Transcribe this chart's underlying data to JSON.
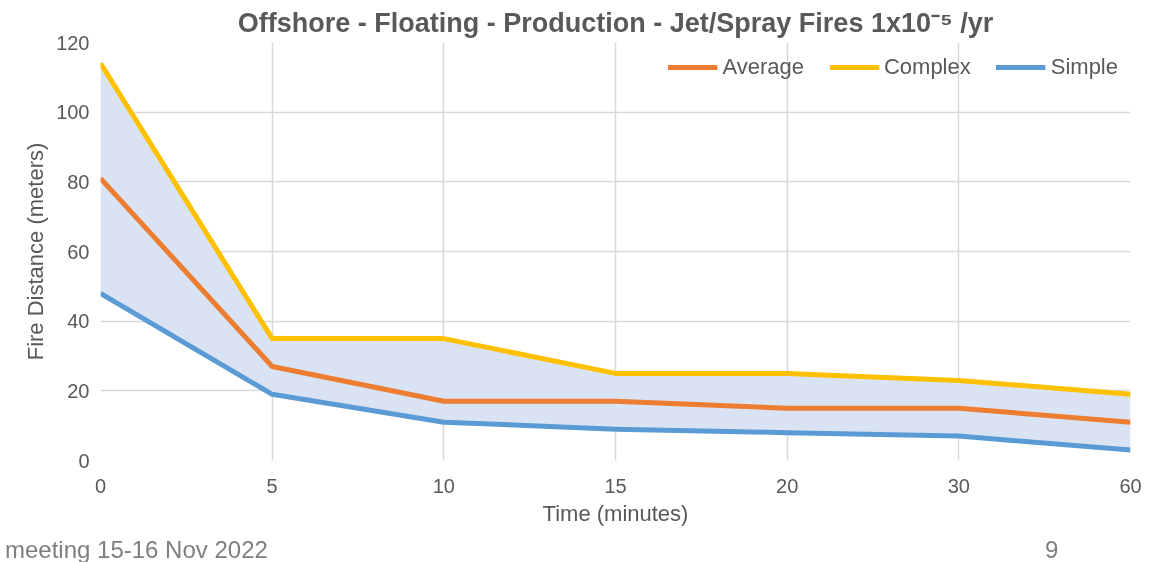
{
  "chart_data": {
    "type": "line",
    "title": "Offshore - Floating - Production - Jet/Spray Fires 1x10⁻⁵ /yr",
    "xlabel": "Time (minutes)",
    "ylabel": "Fire Distance (meters)",
    "categories": [
      "0",
      "5",
      "10",
      "15",
      "20",
      "30",
      "60"
    ],
    "series": [
      {
        "name": "Average",
        "color": "#ed7d31",
        "values": [
          81,
          27,
          17,
          17,
          15,
          15,
          11
        ],
        "lower": [
          48,
          19,
          11,
          9,
          8,
          7,
          3
        ],
        "upper": [
          114,
          35,
          35,
          25,
          25,
          23,
          19
        ]
      },
      {
        "name": "Complex",
        "color": "#ffc000",
        "values": [
          114,
          35,
          35,
          25,
          25,
          23,
          19
        ]
      },
      {
        "name": "Simple",
        "color": "#5b9bd5",
        "values": [
          48,
          19,
          11,
          9,
          8,
          7,
          3
        ]
      }
    ],
    "ylim": [
      0,
      120
    ],
    "yticks": [
      0,
      20,
      40,
      60,
      80,
      100,
      120
    ],
    "grid": true,
    "legend": "top right",
    "marker": "none",
    "line_style": "solid",
    "annotations": [
      "meeting 15-16 Nov 2022",
      "9"
    ]
  }
}
